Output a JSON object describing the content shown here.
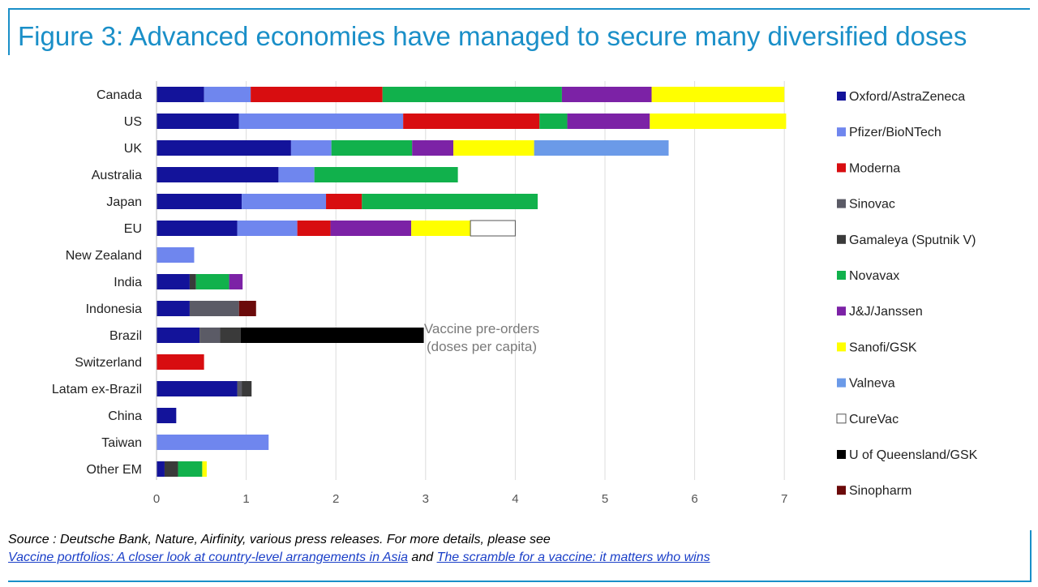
{
  "title": "Figure 3: Advanced economies have managed to secure many diversified doses",
  "source": {
    "line1": "Source : Deutsche Bank, Nature, Airfinity, various press releases. For more details, please see",
    "link1": "Vaccine portfolios: A closer look at country-level arrangements in Asia",
    "and": "and",
    "link2": "The scramble for a vaccine: it matters who wins"
  },
  "chart_data": {
    "type": "bar",
    "orientation": "horizontal",
    "stacked": true,
    "annotation": [
      "Vaccine pre-orders",
      "(doses per capita)"
    ],
    "xlim": [
      0,
      7
    ],
    "xticks": [
      0,
      1,
      2,
      3,
      4,
      5,
      6,
      7
    ],
    "grid": "vertical",
    "legend_position": "right",
    "categories": [
      "Canada",
      "US",
      "UK",
      "Australia",
      "Japan",
      "EU",
      "New Zealand",
      "India",
      "Indonesia",
      "Brazil",
      "Switzerland",
      "Latam ex-Brazil",
      "China",
      "Taiwan",
      "Other EM"
    ],
    "series": [
      {
        "name": "Oxford/AstraZeneca",
        "color": "#13139a",
        "values": [
          0.53,
          0.92,
          1.5,
          1.36,
          0.95,
          0.9,
          0,
          0.37,
          0.37,
          0.48,
          0,
          0.9,
          0.22,
          0,
          0.09
        ]
      },
      {
        "name": "Pfizer/BioNTech",
        "color": "#6f86ee",
        "values": [
          0.52,
          1.83,
          0.45,
          0.4,
          0.94,
          0.67,
          0.42,
          0,
          0,
          0,
          0,
          0,
          0,
          1.25,
          0
        ]
      },
      {
        "name": "Moderna",
        "color": "#d80d10",
        "values": [
          1.47,
          1.52,
          0,
          0,
          0.4,
          0.37,
          0,
          0,
          0,
          0,
          0.53,
          0,
          0,
          0,
          0
        ]
      },
      {
        "name": "Sinovac",
        "color": "#5b5b66",
        "values": [
          0,
          0,
          0,
          0,
          0,
          0,
          0,
          0,
          0.55,
          0.23,
          0,
          0.05,
          0,
          0,
          0
        ]
      },
      {
        "name": "Gamaleya (Sputnik V)",
        "color": "#3a3a3a",
        "values": [
          0,
          0,
          0,
          0,
          0,
          0,
          0,
          0.07,
          0,
          0.23,
          0,
          0.11,
          0,
          0,
          0.15
        ]
      },
      {
        "name": "Novavax",
        "color": "#11b14c",
        "values": [
          2.0,
          0.31,
          0.9,
          1.6,
          1.96,
          0,
          0,
          0.37,
          0,
          0,
          0,
          0,
          0,
          0,
          0.27
        ]
      },
      {
        "name": "J&J/Janssen",
        "color": "#7c22a6",
        "values": [
          1.0,
          0.92,
          0.46,
          0,
          0,
          0.9,
          0,
          0.15,
          0,
          0,
          0,
          0,
          0,
          0,
          0
        ]
      },
      {
        "name": "Sanofi/GSK",
        "color": "#ffff00",
        "values": [
          1.48,
          1.52,
          0.9,
          0,
          0,
          0.66,
          0,
          0,
          0,
          0,
          0,
          0,
          0,
          0,
          0.05
        ]
      },
      {
        "name": "Valneva",
        "color": "#6b9ae8",
        "values": [
          0,
          0,
          1.5,
          0,
          0,
          0,
          0,
          0,
          0,
          0,
          0,
          0,
          0,
          0,
          0
        ]
      },
      {
        "name": "CureVac",
        "color": "#ffffff",
        "stroke": "#555555",
        "values": [
          0,
          0,
          0,
          0,
          0,
          0.5,
          0,
          0,
          0,
          0,
          0,
          0,
          0,
          0,
          0
        ]
      },
      {
        "name": "U of Queensland/GSK",
        "color": "#000000",
        "values": [
          0,
          0,
          0,
          0,
          0,
          0,
          0,
          0,
          0,
          2.04,
          0,
          0,
          0,
          0,
          0
        ]
      },
      {
        "name": "Sinopharm",
        "color": "#6b0a0a",
        "values": [
          0,
          0,
          0,
          0,
          0,
          0,
          0,
          0,
          0.19,
          0,
          0,
          0,
          0,
          0,
          0
        ]
      }
    ]
  }
}
